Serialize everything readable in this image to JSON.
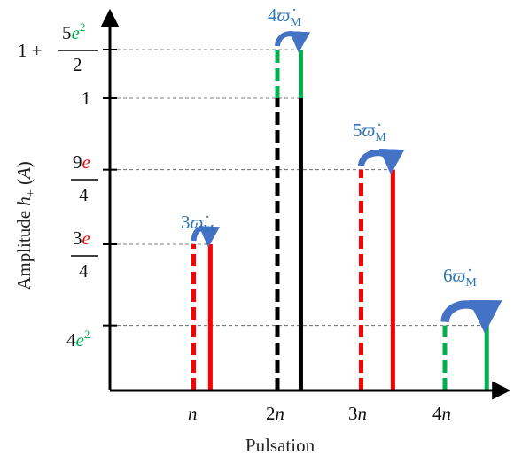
{
  "colors": {
    "red": "#FF0000",
    "green": "#00B050",
    "black": "#000000",
    "blue": "#4472C4",
    "label_blue": "#2E75B6",
    "guide": "#555555"
  },
  "chart_data": {
    "type": "bar",
    "xlabel": "Pulsation",
    "ylabel": "Amplitude h₊ (A)",
    "x_ticks": [
      "n",
      "2n",
      "3n",
      "4n"
    ],
    "y_ticks": [
      {
        "id": "4e2",
        "value": 0.2
      },
      {
        "id": "3e_4",
        "value": 0.45
      },
      {
        "id": "9e_4",
        "value": 0.68
      },
      {
        "id": "1",
        "value": 0.9
      },
      {
        "id": "1p5e2_2",
        "value": 1.05
      }
    ],
    "ylim": [
      0,
      1.25
    ],
    "xlim": [
      0,
      4.4
    ],
    "grid": false,
    "guide_lines": "dashed",
    "groups": [
      {
        "x_dashed": 1.0,
        "x_solid": 1.2,
        "value": 0.45,
        "color": "red",
        "shift": "3ϖ̇M"
      },
      {
        "x_dashed": 2.0,
        "x_solid": 2.28,
        "value": 0.9,
        "color": "black",
        "top_value": 1.05,
        "top_color": "green",
        "shift": "4ϖ̇M"
      },
      {
        "x_dashed": 3.0,
        "x_solid": 3.38,
        "value": 0.68,
        "color": "red",
        "shift": "5ϖ̇M"
      },
      {
        "x_dashed": 4.0,
        "x_solid": 4.5,
        "value": 0.2,
        "color": "green",
        "shift": "6ϖ̇M"
      }
    ]
  }
}
